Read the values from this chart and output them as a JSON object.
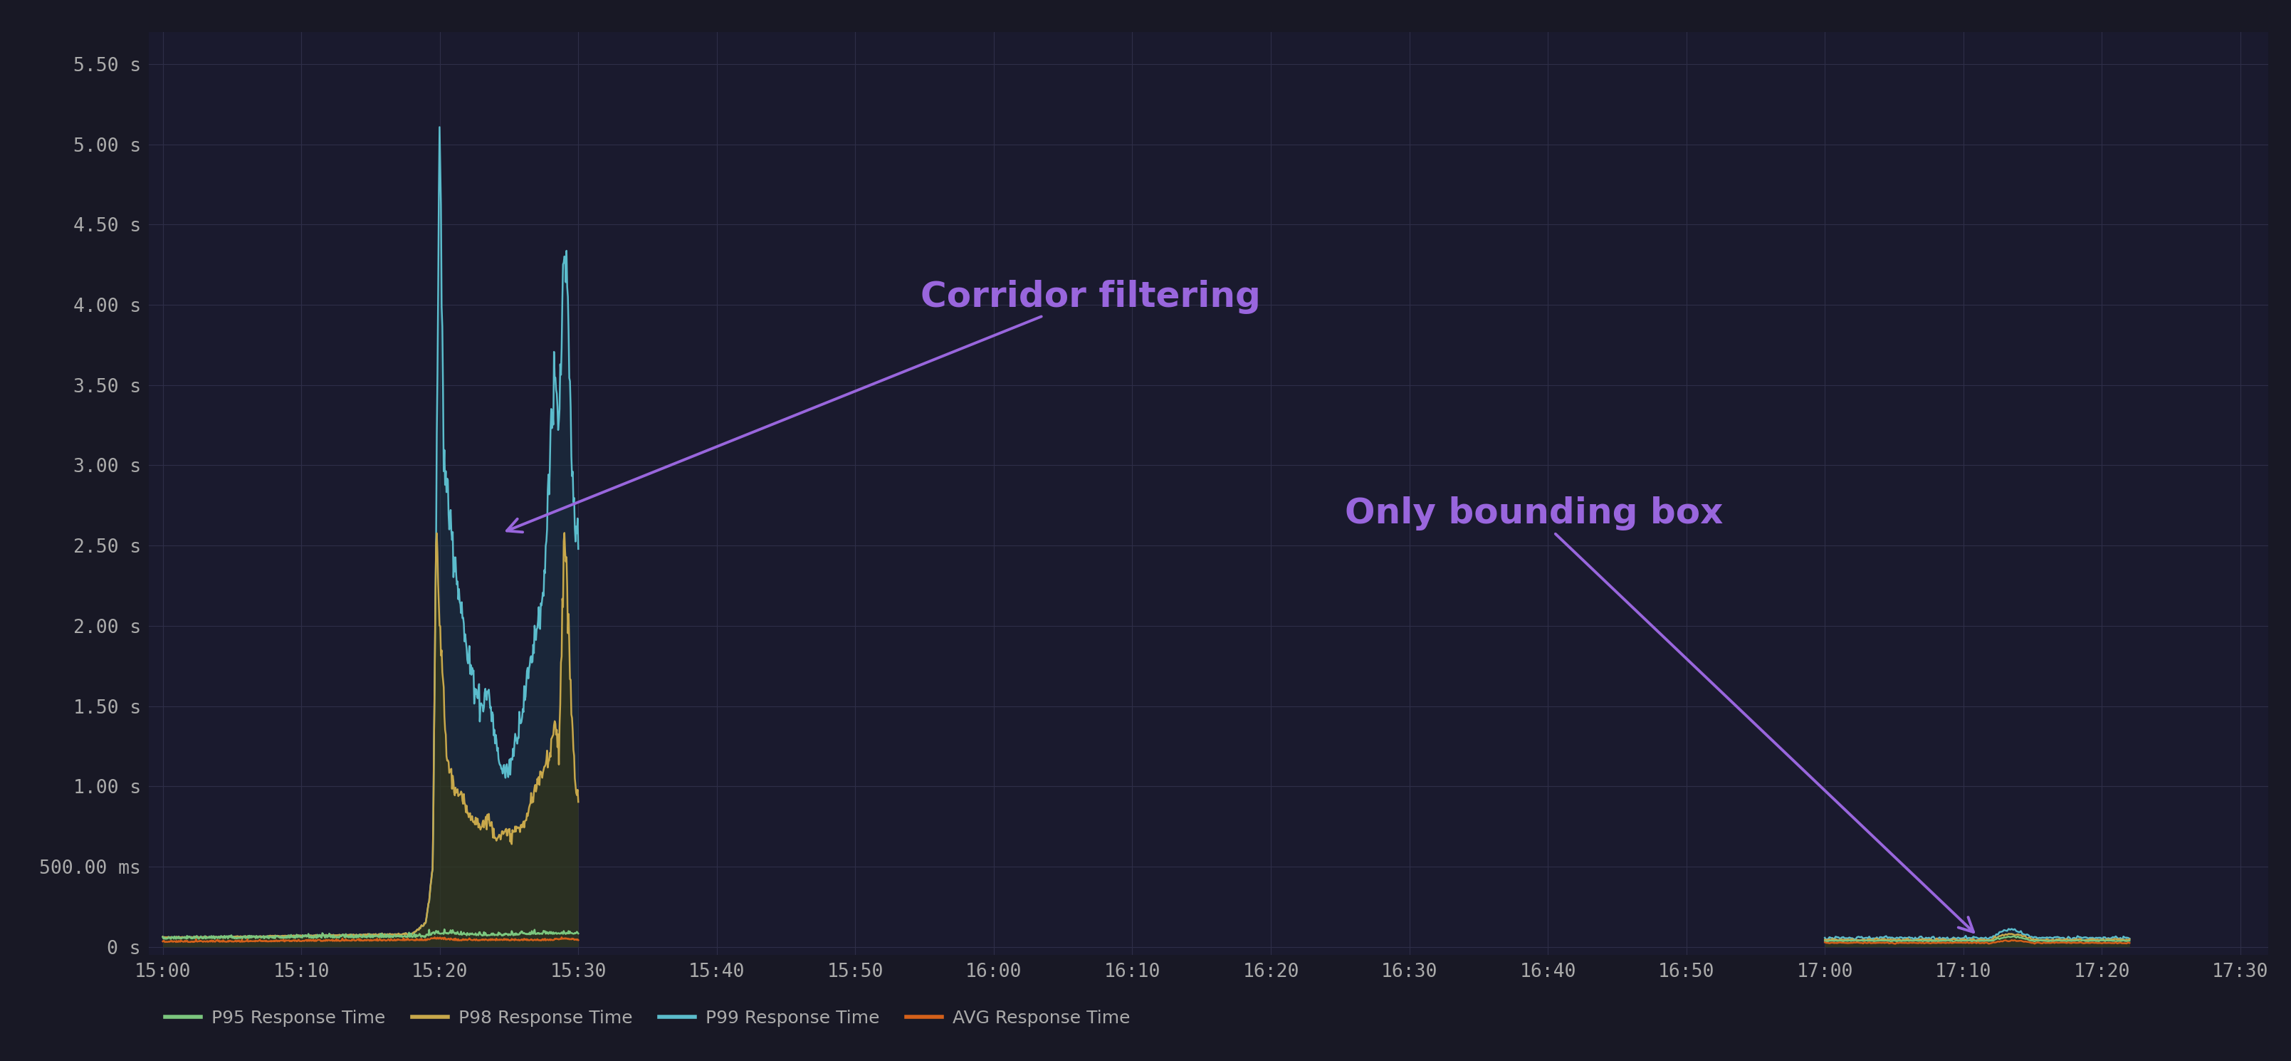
{
  "background_color": "#181825",
  "plot_bg_color": "#1a1a2e",
  "grid_color": "#2e2e48",
  "text_color": "#aaaaaa",
  "yticks_labels": [
    "0 s",
    "500.00 ms",
    "1.00 s",
    "1.50 s",
    "2.00 s",
    "2.50 s",
    "3.00 s",
    "3.50 s",
    "4.00 s",
    "4.50 s",
    "5.00 s",
    "5.50 s"
  ],
  "yticks_vals": [
    0,
    0.5,
    1.0,
    1.5,
    2.0,
    2.5,
    3.0,
    3.5,
    4.0,
    4.5,
    5.0,
    5.5
  ],
  "ylim": [
    -0.05,
    5.7
  ],
  "xticks_labels": [
    "15:00",
    "15:10",
    "15:20",
    "15:30",
    "15:40",
    "15:50",
    "16:00",
    "16:10",
    "16:20",
    "16:30",
    "16:40",
    "16:50",
    "17:00",
    "17:10",
    "17:20",
    "17:30"
  ],
  "xticks_vals": [
    0,
    10,
    20,
    30,
    40,
    50,
    60,
    70,
    80,
    90,
    100,
    110,
    120,
    130,
    140,
    150
  ],
  "xlim": [
    -1,
    152
  ],
  "colors_p95": "#7bc67e",
  "colors_p98": "#c8a84b",
  "colors_p99": "#5bbccc",
  "colors_avg": "#d4601a",
  "fill_p99": "#1a3a4a",
  "fill_p98": "#3a3a10",
  "annotation_cf": "Corridor filtering",
  "annotation_bb": "Only bounding box",
  "annotation_color": "#9966dd",
  "legend_labels": [
    "P95 Response Time",
    "P98 Response Time",
    "P99 Response Time",
    "AVG Response Time"
  ],
  "legend_colors": [
    "#7bc67e",
    "#c8a84b",
    "#5bbccc",
    "#d4601a"
  ]
}
